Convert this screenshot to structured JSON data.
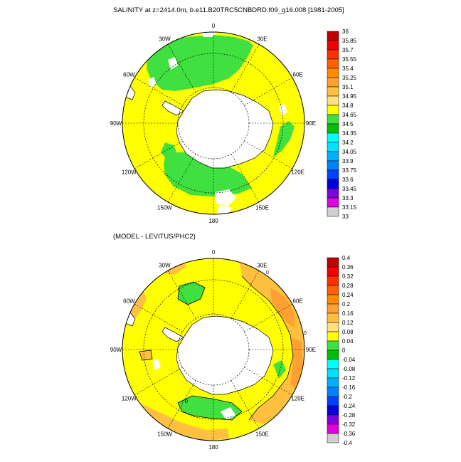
{
  "chart_data": [
    {
      "type": "heatmap",
      "projection": "south-polar-stereographic",
      "title": "SALINITY at z=2414.0m, b.e11.B20TRC5CNBDRD.f09_g16.008 [1981-2005]",
      "field": "salinity",
      "colorbar": {
        "labels": [
          "36",
          "35.85",
          "35.7",
          "35.55",
          "35.4",
          "35.25",
          "35.1",
          "34.95",
          "34.8",
          "34.65",
          "34.5",
          "34.35",
          "34.2",
          "34.05",
          "33.9",
          "33.75",
          "33.6",
          "33.45",
          "33.3",
          "33.15",
          "33"
        ],
        "colors": [
          "#c00000",
          "#f00000",
          "#ff3000",
          "#ff6000",
          "#ff8c00",
          "#ffa030",
          "#ffc040",
          "#ffe080",
          "#ffff00",
          "#40e040",
          "#00c000",
          "#00ffff",
          "#00e0ff",
          "#00b0ff",
          "#0080ff",
          "#0040ff",
          "#0000e0",
          "#8000e0",
          "#e000e0",
          "#d0d0d0"
        ]
      },
      "longitude_labels": [
        "0",
        "30E",
        "60E",
        "90E",
        "120E",
        "150E",
        "180",
        "150W",
        "120W",
        "90W",
        "60W",
        "30W"
      ],
      "regions": [
        {
          "name": "background",
          "value": 34.85
        },
        {
          "name": "weddell-sector",
          "value": 34.7
        },
        {
          "name": "ross-sector",
          "value": 34.7
        }
      ]
    },
    {
      "type": "heatmap",
      "projection": "south-polar-stereographic",
      "title": "(MODEL - LEVITUS/PHC2)",
      "field": "salinity difference",
      "colorbar": {
        "labels": [
          "0.4",
          "0.36",
          "0.32",
          "0.28",
          "0.24",
          "0.2",
          "0.16",
          "0.12",
          "0.08",
          "0.04",
          "0",
          "-0.04",
          "-0.08",
          "-0.12",
          "-0.16",
          "-0.2",
          "-0.24",
          "-0.28",
          "-0.32",
          "-0.36",
          "-0.4"
        ],
        "colors": [
          "#c00000",
          "#f00000",
          "#ff3000",
          "#ff6000",
          "#ff8c00",
          "#ffa030",
          "#ffc040",
          "#ffe080",
          "#ffff00",
          "#40e040",
          "#00c000",
          "#00ffff",
          "#00e0ff",
          "#00b0ff",
          "#0080ff",
          "#0040ff",
          "#0000e0",
          "#8000e0",
          "#e000e0",
          "#d0d0d0"
        ]
      },
      "longitude_labels": [
        "0",
        "30E",
        "60E",
        "90E",
        "120E",
        "150E",
        "180",
        "150W",
        "120W",
        "90W",
        "60W",
        "30W"
      ],
      "contour_labels": [
        "0",
        "0",
        "0"
      ],
      "regions": [
        {
          "name": "background",
          "value": 0.1
        },
        {
          "name": "indian-ocean-positive",
          "value": 0.2
        },
        {
          "name": "ross-negative",
          "value": 0.0
        }
      ]
    }
  ]
}
